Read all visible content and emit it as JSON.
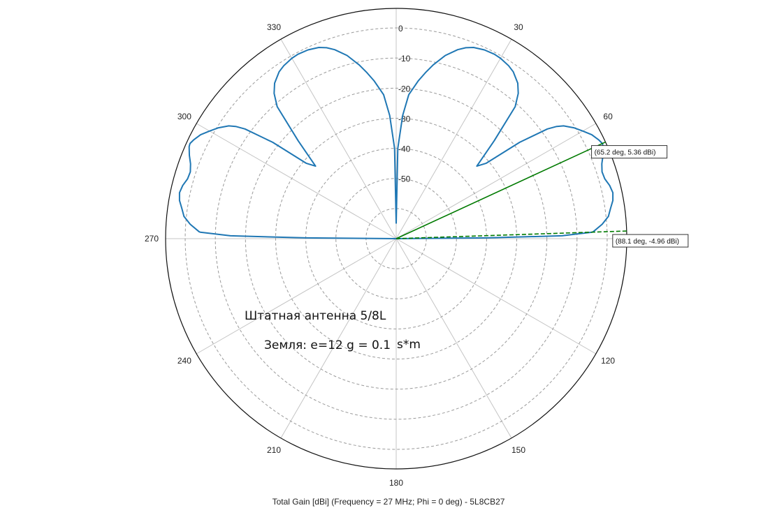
{
  "caption": "Total Gain [dBi] (Frequency = 27 MHz; Phi = 0 deg) - 5L8CB27",
  "annotations": {
    "line1": "Штатная антенна 5/8L",
    "line2": "Земля: е=12  g = 0.1",
    "line3": "s*m"
  },
  "colors": {
    "pattern": "#1f77b4",
    "marker": "#007a00",
    "ring": "#9a9a9a",
    "spoke": "#c4c4c4"
  },
  "chart_data": {
    "type": "polar-line",
    "title": "",
    "angle_ticks": [
      "0",
      "30",
      "60",
      "120",
      "150",
      "180",
      "210",
      "240",
      "270",
      "300",
      "330"
    ],
    "radial_ticks": [
      "0",
      "-10",
      "-20",
      "-30",
      "-40",
      "-50"
    ],
    "radial_range_db": [
      -70,
      6.5
    ],
    "angle_direction": "clockwise from top",
    "series": [
      {
        "theta_deg": [
          0,
          1,
          3,
          5,
          8,
          10,
          12,
          15,
          18,
          20,
          22,
          25,
          28,
          30,
          33,
          35,
          38,
          40,
          42,
          45,
          48,
          50,
          52,
          54,
          55,
          56,
          58,
          60,
          62,
          64,
          65.2,
          66,
          68,
          70,
          72,
          74,
          76,
          78,
          80,
          82,
          84,
          86,
          88,
          88.1,
          89,
          89.5,
          90
        ],
        "gain_db": [
          -65,
          -40,
          -29,
          -22,
          -17,
          -14,
          -11,
          -7,
          -4,
          -2.5,
          -1.5,
          -0.8,
          -0.6,
          -0.8,
          -1.5,
          -2.3,
          -4.5,
          -7,
          -11,
          -24,
          -34,
          -31,
          -18,
          -8,
          -5,
          -3,
          -0.5,
          1.5,
          3.5,
          4.8,
          5.36,
          5.2,
          4.0,
          2.6,
          1.8,
          2.0,
          3.0,
          3.5,
          3.0,
          1.8,
          0.8,
          -1.5,
          -4.6,
          -4.96,
          -15,
          -40,
          -70
        ]
      }
    ],
    "markers": [
      {
        "theta_deg": 65.2,
        "gain_db": 5.36,
        "label": "(65.2 deg, 5.36 dBi)",
        "style": "solid"
      },
      {
        "theta_deg": 88.1,
        "gain_db": -4.96,
        "label": "(88.1 deg, -4.96 dBi)",
        "style": "dashed"
      }
    ]
  }
}
